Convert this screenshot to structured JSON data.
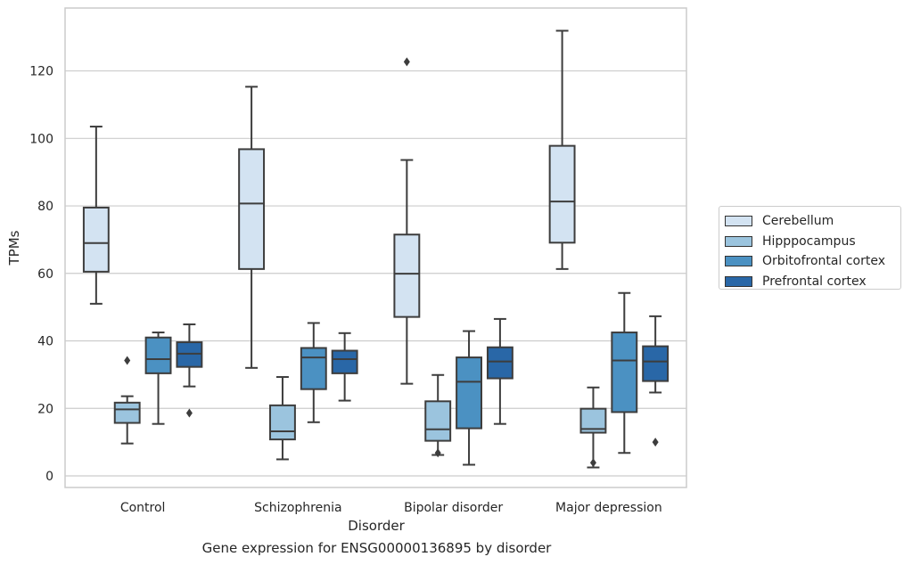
{
  "caption": "Gene expression for ENSG00000136895 by disorder",
  "chart_data": {
    "type": "box",
    "xlabel": "Disorder",
    "ylabel": "TPMs",
    "ylim": [
      -3.5,
      138
    ],
    "yticks": [
      0,
      20,
      40,
      60,
      80,
      100,
      120
    ],
    "grid": true,
    "legend_position": "right",
    "categories": [
      "Control",
      "Schizophrenia",
      "Bipolar disorder",
      "Major depression"
    ],
    "series": [
      {
        "name": "Cerebellum",
        "color": "#d3e3f2",
        "boxes": [
          {
            "whisker_low": 51,
            "q1": 60.5,
            "median": 69,
            "q3": 79.5,
            "whisker_high": 103.5,
            "outliers": []
          },
          {
            "whisker_low": 32,
            "q1": 61.3,
            "median": 80.7,
            "q3": 96.8,
            "whisker_high": 115.3,
            "outliers": []
          },
          {
            "whisker_low": 27.3,
            "q1": 47.1,
            "median": 59.9,
            "q3": 71.5,
            "whisker_high": 93.6,
            "outliers": [
              122.7
            ]
          },
          {
            "whisker_low": 61.3,
            "q1": 69.1,
            "median": 81.3,
            "q3": 97.8,
            "whisker_high": 131.9,
            "outliers": []
          }
        ]
      },
      {
        "name": "Hipppocampus",
        "color": "#9bc4de",
        "boxes": [
          {
            "whisker_low": 9.6,
            "q1": 15.7,
            "median": 19.7,
            "q3": 21.7,
            "whisker_high": 23.6,
            "outliers": [
              34.2
            ]
          },
          {
            "whisker_low": 4.9,
            "q1": 10.8,
            "median": 13.2,
            "q3": 20.9,
            "whisker_high": 29.3,
            "outliers": []
          },
          {
            "whisker_low": 6.2,
            "q1": 10.4,
            "median": 13.8,
            "q3": 22.1,
            "whisker_high": 29.9,
            "outliers": [
              6.8
            ]
          },
          {
            "whisker_low": 2.5,
            "q1": 12.8,
            "median": 13.9,
            "q3": 19.9,
            "whisker_high": 26.2,
            "outliers": [
              3.9
            ]
          }
        ]
      },
      {
        "name": "Orbitofrontal cortex",
        "color": "#4b91c2",
        "boxes": [
          {
            "whisker_low": 15.4,
            "q1": 30.4,
            "median": 34.6,
            "q3": 41,
            "whisker_high": 42.5,
            "outliers": []
          },
          {
            "whisker_low": 15.9,
            "q1": 25.7,
            "median": 35.1,
            "q3": 37.9,
            "whisker_high": 45.3,
            "outliers": []
          },
          {
            "whisker_low": 3.3,
            "q1": 14.1,
            "median": 27.9,
            "q3": 35.1,
            "whisker_high": 42.9,
            "outliers": []
          },
          {
            "whisker_low": 6.8,
            "q1": 18.9,
            "median": 34.2,
            "q3": 42.5,
            "whisker_high": 54.2,
            "outliers": []
          }
        ]
      },
      {
        "name": "Prefrontal cortex",
        "color": "#2967a7",
        "boxes": [
          {
            "whisker_low": 26.5,
            "q1": 32.3,
            "median": 36.2,
            "q3": 39.6,
            "whisker_high": 44.9,
            "outliers": [
              18.6
            ]
          },
          {
            "whisker_low": 22.3,
            "q1": 30.4,
            "median": 34.6,
            "q3": 37.1,
            "whisker_high": 42.3,
            "outliers": []
          },
          {
            "whisker_low": 15.4,
            "q1": 28.9,
            "median": 33.9,
            "q3": 38.1,
            "whisker_high": 46.5,
            "outliers": []
          },
          {
            "whisker_low": 24.7,
            "q1": 28.1,
            "median": 33.9,
            "q3": 38.4,
            "whisker_high": 47.3,
            "outliers": [
              10
            ]
          }
        ]
      }
    ]
  }
}
